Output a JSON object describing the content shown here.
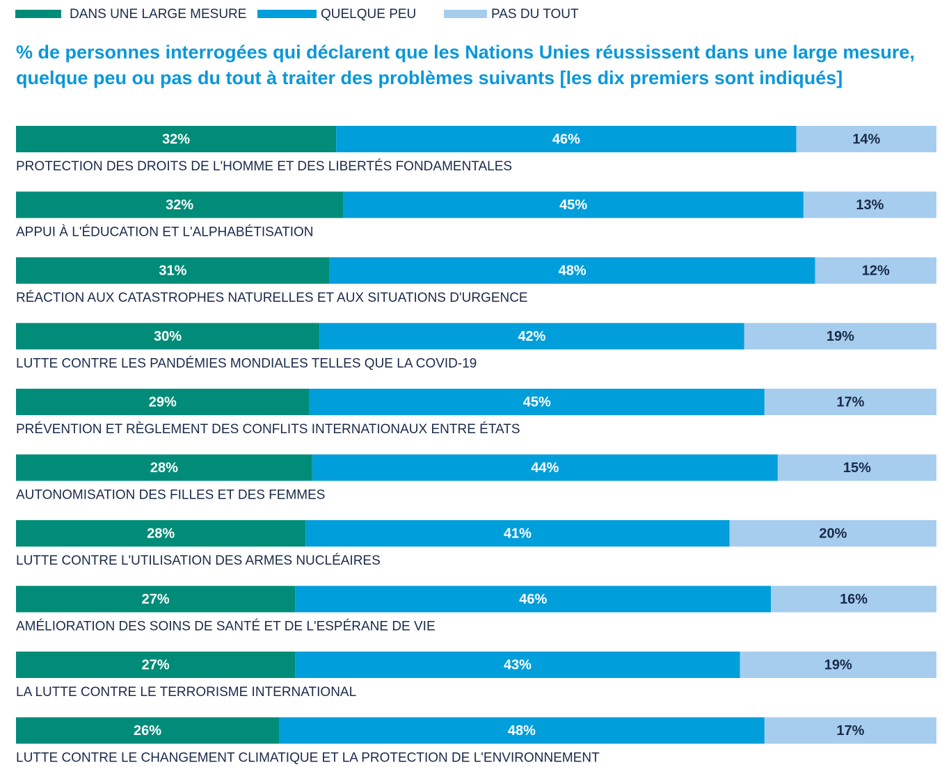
{
  "chart_data": {
    "type": "stacked-bar-horizontal",
    "title": "% de personnes interrogées qui déclarent que les Nations Unies réussissent dans une large mesure, quelque peu ou pas du tout à traiter des problèmes suivants [les dix premiers sont indiqués]",
    "categories": [
      "PROTECTION DES DROITS DE L'HOMME ET DES LIBERTÉS FONDAMENTALES",
      "APPUI À L'ÉDUCATION ET L'ALPHABÉTISATION",
      "RÉACTION AUX CATASTROPHES NATURELLES ET AUX SITUATIONS D'URGENCE",
      "LUTTE CONTRE LES PANDÉMIES MONDIALES TELLES QUE LA COVID-19",
      "PRÉVENTION ET RÈGLEMENT DES CONFLITS INTERNATIONAUX ENTRE ÉTATS",
      "AUTONOMISATION DES FILLES ET DES FEMMES",
      "LUTTE CONTRE L'UTILISATION DES ARMES NUCLÉAIRES",
      "AMÉLIORATION DES SOINS DE SANTÉ ET DE L'ESPÉRANE DE VIE",
      "LA LUTTE CONTRE LE TERRORISME INTERNATIONAL",
      "LUTTE CONTRE LE CHANGEMENT CLIMATIQUE ET LA PROTECTION DE L'ENVIRONNEMENT"
    ],
    "series": [
      {
        "name": "DANS UNE LARGE MESURE",
        "color": "#008c78",
        "values": [
          32,
          32,
          31,
          30,
          29,
          28,
          28,
          27,
          27,
          26
        ],
        "value_labels": [
          "32%",
          "32%",
          "31%",
          "30%",
          "29%",
          "28%",
          "28%",
          "27%",
          "27%",
          "26%"
        ]
      },
      {
        "name": "QUELQUE PEU",
        "color": "#009edb",
        "values": [
          46,
          45,
          48,
          42,
          45,
          44,
          41,
          46,
          43,
          48
        ],
        "value_labels": [
          "46%",
          "45%",
          "48%",
          "42%",
          "45%",
          "44%",
          "41%",
          "46%",
          "43%",
          "48%"
        ]
      },
      {
        "name": "PAS DU TOUT",
        "color": "#a6cdee",
        "values": [
          14,
          13,
          12,
          19,
          17,
          15,
          20,
          16,
          19,
          17
        ],
        "value_labels": [
          "14%",
          "13%",
          "12%",
          "19%",
          "17%",
          "15%",
          "20%",
          "16%",
          "19%",
          "17%"
        ]
      }
    ]
  }
}
